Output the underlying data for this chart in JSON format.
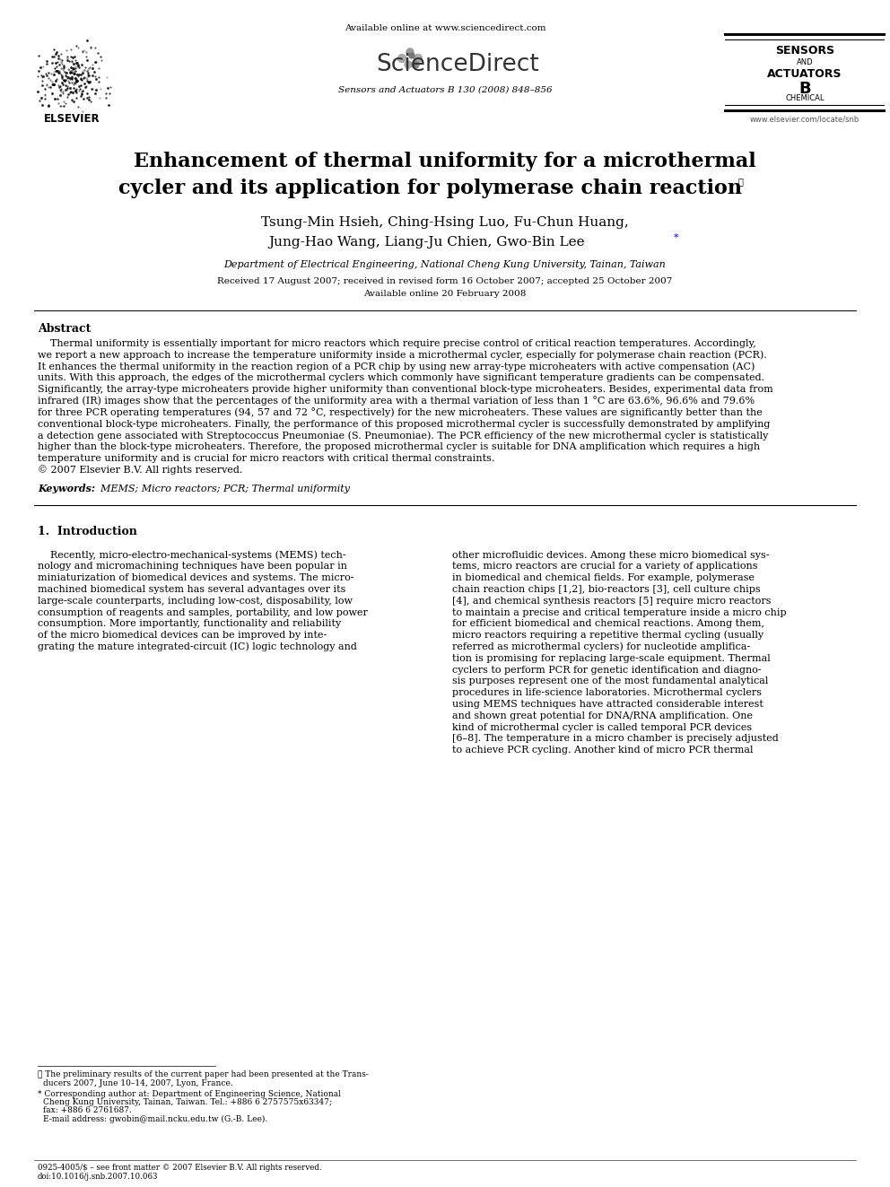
{
  "background_color": "#ffffff",
  "available_online_text": "Available online at www.sciencedirect.com",
  "sciencedirect_text": "ScienceDirect",
  "journal_text": "Sensors and Actuators B 130 (2008) 848–856",
  "journal_right_text": "www.elsevier.com/locate/snb",
  "sensors_line1": "SENSORS",
  "sensors_line2": "AND",
  "sensors_line3": "ACTUATORS",
  "sensors_line4": "B",
  "sensors_line5": "CHEMICAL",
  "paper_title_line1": "Enhancement of thermal uniformity for a microthermal",
  "paper_title_line2": "cycler and its application for polymerase chain reaction",
  "paper_title_star": "★",
  "authors_line1": "Tsung-Min Hsieh, Ching-Hsing Luo, Fu-Chun Huang,",
  "authors_line2": "Jung-Hao Wang, Liang-Ju Chien, Gwo-Bin Lee",
  "authors_star": "*",
  "affiliation": "Department of Electrical Engineering, National Cheng Kung University, Tainan, Taiwan",
  "received_text": "Received 17 August 2007; received in revised form 16 October 2007; accepted 25 October 2007",
  "available_text": "Available online 20 February 2008",
  "abstract_heading": "Abstract",
  "keywords_label": "Keywords:",
  "keywords_text": "MEMS; Micro reactors; PCR; Thermal uniformity",
  "section1_heading": "1.  Introduction",
  "abstract_lines": [
    "    Thermal uniformity is essentially important for micro reactors which require precise control of critical reaction temperatures. Accordingly,",
    "we report a new approach to increase the temperature uniformity inside a microthermal cycler, especially for polymerase chain reaction (PCR).",
    "It enhances the thermal uniformity in the reaction region of a PCR chip by using new array-type microheaters with active compensation (AC)",
    "units. With this approach, the edges of the microthermal cyclers which commonly have significant temperature gradients can be compensated.",
    "Significantly, the array-type microheaters provide higher uniformity than conventional block-type microheaters. Besides, experimental data from",
    "infrared (IR) images show that the percentages of the uniformity area with a thermal variation of less than 1 °C are 63.6%, 96.6% and 79.6%",
    "for three PCR operating temperatures (94, 57 and 72 °C, respectively) for the new microheaters. These values are significantly better than the",
    "conventional block-type microheaters. Finally, the performance of this proposed microthermal cycler is successfully demonstrated by amplifying",
    "a detection gene associated with Streptococcus Pneumoniae (S. Pneumoniae). The PCR efficiency of the new microthermal cycler is statistically",
    "higher than the block-type microheaters. Therefore, the proposed microthermal cycler is suitable for DNA amplification which requires a high",
    "temperature uniformity and is crucial for micro reactors with critical thermal constraints.",
    "© 2007 Elsevier B.V. All rights reserved."
  ],
  "col1_lines": [
    "    Recently, micro-electro-mechanical-systems (MEMS) tech-",
    "nology and micromachining techniques have been popular in",
    "miniaturization of biomedical devices and systems. The micro-",
    "machined biomedical system has several advantages over its",
    "large-scale counterparts, including low-cost, disposability, low",
    "consumption of reagents and samples, portability, and low power",
    "consumption. More importantly, functionality and reliability",
    "of the micro biomedical devices can be improved by inte-",
    "grating the mature integrated-circuit (IC) logic technology and"
  ],
  "col2_lines": [
    "other microfluidic devices. Among these micro biomedical sys-",
    "tems, micro reactors are crucial for a variety of applications",
    "in biomedical and chemical fields. For example, polymerase",
    "chain reaction chips [1,2], bio-reactors [3], cell culture chips",
    "[4], and chemical synthesis reactors [5] require micro reactors",
    "to maintain a precise and critical temperature inside a micro chip",
    "for efficient biomedical and chemical reactions. Among them,",
    "micro reactors requiring a repetitive thermal cycling (usually",
    "referred as microthermal cyclers) for nucleotide amplifica-",
    "tion is promising for replacing large-scale equipment. Thermal",
    "cyclers to perform PCR for genetic identification and diagno-",
    "sis purposes represent one of the most fundamental analytical",
    "procedures in life-science laboratories. Microthermal cyclers",
    "using MEMS techniques have attracted considerable interest",
    "and shown great potential for DNA/RNA amplification. One",
    "kind of microthermal cycler is called temporal PCR devices",
    "[6–8]. The temperature in a micro chamber is precisely adjusted",
    "to achieve PCR cycling. Another kind of micro PCR thermal"
  ],
  "fn1a": "★ The preliminary results of the current paper had been presented at the Trans-",
  "fn1b": "ducers 2007, June 10–14, 2007, Lyon, France.",
  "fn2a": "* Corresponding author at: Department of Engineering Science, National",
  "fn2b": "Cheng Kung University, Tainan, Taiwan. Tel.: +886 6 2757575x63347;",
  "fn2c": "fax: +886 6 2761687.",
  "fn3": "E-mail address: gwobin@mail.ncku.edu.tw (G.-B. Lee).",
  "footer1": "0925-4005/$ – see front matter © 2007 Elsevier B.V. All rights reserved.",
  "footer2": "doi:10.1016/j.snb.2007.10.063"
}
